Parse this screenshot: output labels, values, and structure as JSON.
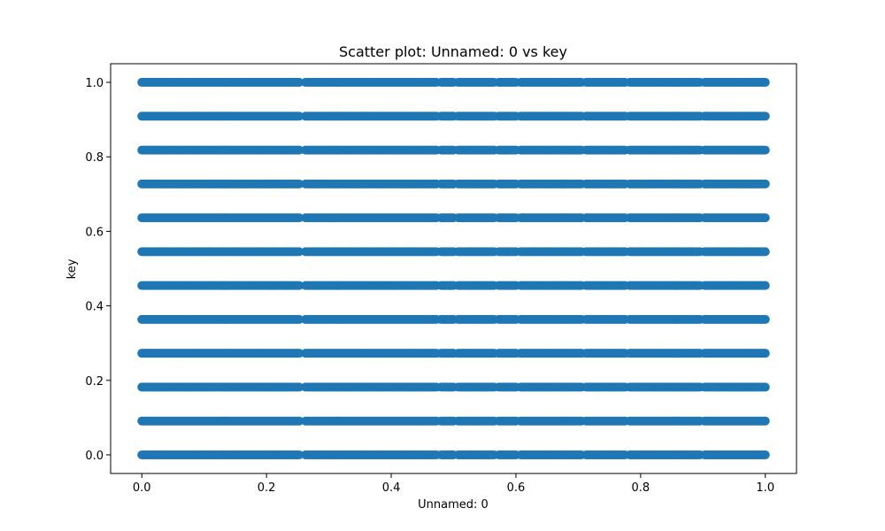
{
  "chart_data": {
    "type": "scatter",
    "title": "Scatter plot: Unnamed: 0 vs key",
    "xlabel": "Unnamed: 0",
    "ylabel": "key",
    "xlim": [
      -0.05,
      1.05
    ],
    "ylim": [
      -0.05,
      1.05
    ],
    "x_ticks": [
      0.0,
      0.2,
      0.4,
      0.6,
      0.8,
      1.0
    ],
    "x_tick_labels": [
      "0.0",
      "0.2",
      "0.4",
      "0.6",
      "0.8",
      "1.0"
    ],
    "y_ticks": [
      0.0,
      0.2,
      0.4,
      0.6,
      0.8,
      1.0
    ],
    "y_tick_labels": [
      "0.0",
      "0.2",
      "0.4",
      "0.6",
      "0.8",
      "1.0"
    ],
    "grid": false,
    "marker_color": "#1f77b4",
    "series": [
      {
        "key_levels": [
          0.0,
          0.0909,
          0.1818,
          0.2727,
          0.3636,
          0.4545,
          0.5455,
          0.6364,
          0.7273,
          0.8182,
          0.9091,
          1.0
        ],
        "x_range": [
          0.0,
          1.0
        ],
        "x_step": 0.0025,
        "gaps": [
          {
            "x0": 0.254,
            "x1": 0.262
          },
          {
            "x0": 0.474,
            "x1": 0.48
          },
          {
            "x0": 0.5,
            "x1": 0.506
          },
          {
            "x0": 0.566,
            "x1": 0.572
          },
          {
            "x0": 0.6,
            "x1": 0.606
          },
          {
            "x0": 0.706,
            "x1": 0.712
          },
          {
            "x0": 0.776,
            "x1": 0.782
          },
          {
            "x0": 0.896,
            "x1": 0.902
          }
        ]
      }
    ]
  }
}
